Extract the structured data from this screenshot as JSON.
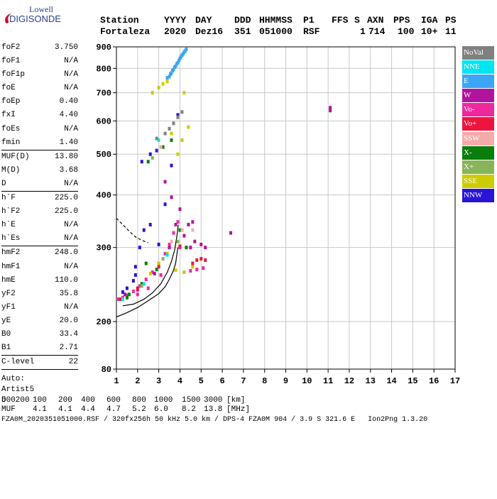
{
  "logo": {
    "brand": "Lowell",
    "product": "DIGISONDE"
  },
  "header": {
    "labels": [
      "Station",
      "YYYY",
      "DAY",
      "DDD",
      "HHMMSS",
      "P1",
      "FFS",
      "S",
      "AXN",
      "PPS",
      "IGA",
      "PS"
    ],
    "values": [
      "Fortaleza",
      "2020",
      "Dez16",
      "351",
      "051000",
      "RSF",
      "",
      "1",
      "714",
      "100",
      "10+",
      "11"
    ]
  },
  "params": {
    "group1": [
      {
        "name": "foF2",
        "value": "3.750"
      },
      {
        "name": "foF1",
        "value": "N/A"
      },
      {
        "name": "foF1p",
        "value": "N/A"
      },
      {
        "name": "foE",
        "value": "N/A"
      },
      {
        "name": "foEp",
        "value": "0.40"
      },
      {
        "name": "fxI",
        "value": "4.40"
      },
      {
        "name": "foEs",
        "value": "N/A"
      },
      {
        "name": "fmin",
        "value": "1.40"
      }
    ],
    "group2": [
      {
        "name": "MUF(D)",
        "value": "13.80"
      },
      {
        "name": "M(D)",
        "value": "3.68"
      },
      {
        "name": "D",
        "value": "N/A"
      }
    ],
    "group3": [
      {
        "name": "h`F",
        "value": "225.0"
      },
      {
        "name": "h`F2",
        "value": "225.0"
      },
      {
        "name": "h`E",
        "value": "N/A"
      },
      {
        "name": "h`Es",
        "value": "N/A"
      }
    ],
    "group4": [
      {
        "name": "hmF2",
        "value": "248.0"
      },
      {
        "name": "hmF1",
        "value": "N/A"
      },
      {
        "name": "hmE",
        "value": "110.0"
      },
      {
        "name": "yF2",
        "value": "35.8"
      },
      {
        "name": "yF1",
        "value": "N/A"
      },
      {
        "name": "yE",
        "value": "20.0"
      },
      {
        "name": "B0",
        "value": "33.4"
      },
      {
        "name": "B1",
        "value": "2.71"
      }
    ],
    "group5": [
      {
        "name": "C-level",
        "value": "22"
      }
    ],
    "autoscale": {
      "line1": "Auto:",
      "line2": "Artist5",
      "line3": "500200"
    }
  },
  "legend": [
    {
      "label": "NoVal",
      "color": "#808080"
    },
    {
      "label": "NNE",
      "color": "#00e6f0"
    },
    {
      "label": "E",
      "color": "#3aa6f5"
    },
    {
      "label": "W",
      "color": "#b0149c"
    },
    {
      "label": "Vo-",
      "color": "#f0289e"
    },
    {
      "label": "Vo+",
      "color": "#f0143c"
    },
    {
      "label": "SSW",
      "color": "#f5aaaa"
    },
    {
      "label": "X-",
      "color": "#0a7d0a"
    },
    {
      "label": "X+",
      "color": "#88b45a"
    },
    {
      "label": "SSE",
      "color": "#cccc00"
    },
    {
      "label": "NNW",
      "color": "#2a14d8"
    }
  ],
  "footer": {
    "d_label": "D",
    "d_values": [
      "100",
      "200",
      "400",
      "600",
      "800",
      "1000",
      "1500",
      "3000",
      "[km]"
    ],
    "muf_label": "MUF",
    "muf_values": [
      "4.1",
      "4.1",
      "4.4",
      "4.7",
      "5.2",
      "6.0",
      "8.2",
      "13.8",
      "[MHz]"
    ],
    "info": "FZA0M_2020351051000.RSF / 320fx256h 50 kHz 5.0 km / DPS-4 FZA0M 904 / 3.9 S 321.6 E   Ion2Png 1.3.20"
  },
  "chart_data": {
    "type": "scatter",
    "title": "",
    "xlabel": "",
    "ylabel": "",
    "xlim": [
      1,
      17
    ],
    "ylim": [
      80,
      900
    ],
    "y_scale": "log",
    "x_ticks": [
      1,
      2,
      3,
      4,
      5,
      6,
      7,
      8,
      9,
      10,
      11,
      12,
      13,
      14,
      15,
      16,
      17
    ],
    "y_ticks": [
      80,
      200,
      300,
      400,
      500,
      600,
      700,
      800,
      900
    ],
    "grid": true,
    "legend_position": "right",
    "series": [
      {
        "name": "Vo-",
        "points": [
          [
            1.1,
            226
          ],
          [
            1.3,
            228
          ],
          [
            1.5,
            231
          ],
          [
            1.8,
            236
          ],
          [
            2.1,
            243
          ],
          [
            2.4,
            252
          ],
          [
            2.7,
            262
          ],
          [
            3.0,
            275
          ],
          [
            3.3,
            290
          ],
          [
            3.5,
            305
          ],
          [
            3.7,
            325
          ],
          [
            3.9,
            345
          ],
          [
            4.2,
            262
          ],
          [
            4.5,
            264
          ],
          [
            4.8,
            266
          ],
          [
            5.1,
            268
          ],
          [
            2.0,
            232
          ],
          [
            2.5,
            240
          ],
          [
            3.1,
            258
          ],
          [
            4.0,
            300
          ]
        ]
      },
      {
        "name": "W",
        "points": [
          [
            1.4,
            232
          ],
          [
            2.0,
            240
          ],
          [
            2.8,
            260
          ],
          [
            3.5,
            300
          ],
          [
            3.8,
            340
          ],
          [
            4.2,
            320
          ],
          [
            4.5,
            300
          ],
          [
            4.7,
            310
          ],
          [
            5.0,
            305
          ],
          [
            5.2,
            300
          ],
          [
            4.4,
            340
          ],
          [
            4.0,
            370
          ],
          [
            3.6,
            395
          ],
          [
            3.3,
            430
          ],
          [
            4.6,
            345
          ],
          [
            6.4,
            325
          ],
          [
            11.1,
            635
          ],
          [
            11.1,
            645
          ]
        ]
      },
      {
        "name": "X-",
        "points": [
          [
            1.6,
            232
          ],
          [
            2.2,
            246
          ],
          [
            2.9,
            266
          ],
          [
            3.4,
            290
          ],
          [
            4.0,
            330
          ],
          [
            4.3,
            300
          ],
          [
            2.5,
            480
          ],
          [
            3.2,
            520
          ],
          [
            3.6,
            540
          ],
          [
            4.0,
            302
          ],
          [
            2.4,
            275
          ],
          [
            1.5,
            228
          ]
        ]
      },
      {
        "name": "NNW",
        "points": [
          [
            1.5,
            240
          ],
          [
            1.8,
            250
          ],
          [
            1.9,
            270
          ],
          [
            2.1,
            300
          ],
          [
            2.3,
            330
          ],
          [
            2.6,
            340
          ],
          [
            3.0,
            305
          ],
          [
            3.3,
            380
          ],
          [
            3.6,
            470
          ],
          [
            3.9,
            620
          ],
          [
            2.9,
            510
          ],
          [
            2.6,
            500
          ],
          [
            2.2,
            480
          ],
          [
            1.9,
            258
          ],
          [
            1.3,
            235
          ]
        ]
      },
      {
        "name": "E",
        "points": [
          [
            3.5,
            765
          ],
          [
            3.6,
            780
          ],
          [
            3.7,
            795
          ],
          [
            3.8,
            810
          ],
          [
            3.9,
            825
          ],
          [
            4.0,
            845
          ],
          [
            4.1,
            860
          ],
          [
            4.2,
            875
          ],
          [
            4.3,
            888
          ],
          [
            3.4,
            760
          ],
          [
            3.55,
            775
          ],
          [
            3.65,
            790
          ],
          [
            3.75,
            805
          ],
          [
            3.85,
            820
          ],
          [
            3.95,
            835
          ],
          [
            4.05,
            852
          ],
          [
            4.15,
            866
          ],
          [
            4.25,
            880
          ]
        ]
      },
      {
        "name": "SSE",
        "points": [
          [
            2.6,
            260
          ],
          [
            3.0,
            275
          ],
          [
            3.4,
            290
          ],
          [
            3.8,
            265
          ],
          [
            4.2,
            262
          ],
          [
            4.6,
            270
          ],
          [
            2.7,
            700
          ],
          [
            3.0,
            720
          ],
          [
            3.2,
            735
          ],
          [
            3.4,
            745
          ],
          [
            3.6,
            560
          ],
          [
            3.9,
            500
          ],
          [
            4.1,
            540
          ],
          [
            4.4,
            580
          ],
          [
            4.2,
            700
          ]
        ]
      },
      {
        "name": "Vo+",
        "points": [
          [
            1.2,
            226
          ],
          [
            2.0,
            238
          ],
          [
            3.0,
            270
          ],
          [
            4.0,
            302
          ],
          [
            4.8,
            280
          ],
          [
            5.0,
            282
          ],
          [
            5.2,
            280
          ],
          [
            4.6,
            275
          ]
        ]
      },
      {
        "name": "NNE",
        "points": [
          [
            1.3,
            226
          ],
          [
            2.3,
            246
          ],
          [
            3.4,
            288
          ],
          [
            3.0,
            540
          ]
        ]
      },
      {
        "name": "X+",
        "points": [
          [
            2.2,
            243
          ],
          [
            3.2,
            282
          ],
          [
            3.9,
            310
          ],
          [
            2.7,
            490
          ]
        ]
      },
      {
        "name": "SSW",
        "points": [
          [
            3.6,
            310
          ],
          [
            4.1,
            330
          ],
          [
            4.6,
            330
          ],
          [
            3.1,
            520
          ]
        ]
      },
      {
        "name": "NoVal",
        "points": [
          [
            2.9,
            545
          ],
          [
            3.3,
            560
          ],
          [
            3.5,
            575
          ],
          [
            3.7,
            592
          ],
          [
            3.9,
            612
          ],
          [
            4.1,
            630
          ]
        ]
      }
    ],
    "curves": [
      {
        "name": "profile",
        "style": "solid",
        "points": [
          [
            1.0,
            205
          ],
          [
            1.5,
            210
          ],
          [
            2.0,
            216
          ],
          [
            2.5,
            224
          ],
          [
            3.0,
            233
          ],
          [
            3.3,
            242
          ],
          [
            3.5,
            252
          ],
          [
            3.7,
            265
          ],
          [
            3.8,
            276
          ],
          [
            3.85,
            288
          ],
          [
            3.9,
            300
          ]
        ]
      },
      {
        "name": "trace",
        "style": "solid",
        "points": [
          [
            1.3,
            218
          ],
          [
            1.8,
            220
          ],
          [
            2.3,
            226
          ],
          [
            2.7,
            234
          ],
          [
            3.1,
            246
          ],
          [
            3.4,
            262
          ],
          [
            3.6,
            278
          ],
          [
            3.75,
            296
          ],
          [
            3.85,
            318
          ],
          [
            3.92,
            340
          ]
        ]
      },
      {
        "name": "extension",
        "style": "dashed",
        "points": [
          [
            1.0,
            352
          ],
          [
            1.3,
            340
          ],
          [
            1.6,
            328
          ],
          [
            1.9,
            318
          ],
          [
            2.2,
            312
          ],
          [
            2.5,
            308
          ]
        ]
      }
    ]
  }
}
